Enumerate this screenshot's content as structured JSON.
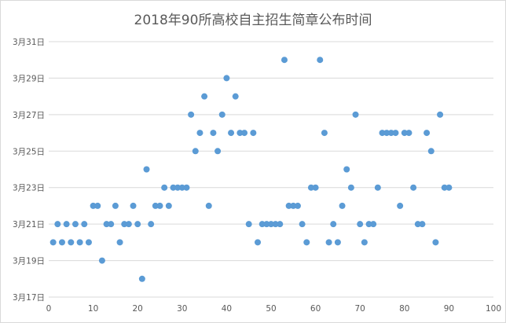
{
  "chart_data": {
    "type": "scatter",
    "title": "2018年90所高校自主招生简章公布时间",
    "xlabel": "",
    "ylabel": "",
    "xlim": [
      0,
      100
    ],
    "x_ticks": [
      0,
      10,
      20,
      30,
      40,
      50,
      60,
      70,
      80,
      90,
      100
    ],
    "ylim": [
      "3月17日",
      "3月31日"
    ],
    "y_ticks": [
      "3月17日",
      "3月19日",
      "3月21日",
      "3月23日",
      "3月25日",
      "3月27日",
      "3月29日",
      "3月31日"
    ],
    "grid": "horizontal",
    "legend": "none",
    "marker_color": "#5b9bd5",
    "series": [
      {
        "points": [
          [
            1,
            "3月20日"
          ],
          [
            2,
            "3月21日"
          ],
          [
            3,
            "3月20日"
          ],
          [
            4,
            "3月21日"
          ],
          [
            5,
            "3月20日"
          ],
          [
            6,
            "3月21日"
          ],
          [
            7,
            "3月20日"
          ],
          [
            8,
            "3月21日"
          ],
          [
            9,
            "3月20日"
          ],
          [
            10,
            "3月22日"
          ],
          [
            11,
            "3月22日"
          ],
          [
            12,
            "3月19日"
          ],
          [
            13,
            "3月21日"
          ],
          [
            14,
            "3月21日"
          ],
          [
            15,
            "3月22日"
          ],
          [
            16,
            "3月20日"
          ],
          [
            17,
            "3月21日"
          ],
          [
            18,
            "3月21日"
          ],
          [
            19,
            "3月22日"
          ],
          [
            20,
            "3月21日"
          ],
          [
            21,
            "3月18日"
          ],
          [
            22,
            "3月24日"
          ],
          [
            23,
            "3月21日"
          ],
          [
            24,
            "3月22日"
          ],
          [
            25,
            "3月22日"
          ],
          [
            26,
            "3月23日"
          ],
          [
            27,
            "3月22日"
          ],
          [
            28,
            "3月23日"
          ],
          [
            29,
            "3月23日"
          ],
          [
            30,
            "3月23日"
          ],
          [
            31,
            "3月23日"
          ],
          [
            32,
            "3月27日"
          ],
          [
            33,
            "3月25日"
          ],
          [
            34,
            "3月26日"
          ],
          [
            35,
            "3月28日"
          ],
          [
            36,
            "3月22日"
          ],
          [
            37,
            "3月26日"
          ],
          [
            38,
            "3月25日"
          ],
          [
            39,
            "3月27日"
          ],
          [
            40,
            "3月29日"
          ],
          [
            41,
            "3月26日"
          ],
          [
            42,
            "3月28日"
          ],
          [
            43,
            "3月26日"
          ],
          [
            44,
            "3月26日"
          ],
          [
            45,
            "3月21日"
          ],
          [
            46,
            "3月26日"
          ],
          [
            47,
            "3月20日"
          ],
          [
            48,
            "3月21日"
          ],
          [
            49,
            "3月21日"
          ],
          [
            50,
            "3月21日"
          ],
          [
            51,
            "3月21日"
          ],
          [
            52,
            "3月21日"
          ],
          [
            53,
            "3月30日"
          ],
          [
            54,
            "3月22日"
          ],
          [
            55,
            "3月22日"
          ],
          [
            56,
            "3月22日"
          ],
          [
            57,
            "3月21日"
          ],
          [
            58,
            "3月20日"
          ],
          [
            59,
            "3月23日"
          ],
          [
            60,
            "3月23日"
          ],
          [
            61,
            "3月30日"
          ],
          [
            62,
            "3月26日"
          ],
          [
            63,
            "3月20日"
          ],
          [
            64,
            "3月21日"
          ],
          [
            65,
            "3月20日"
          ],
          [
            66,
            "3月22日"
          ],
          [
            67,
            "3月24日"
          ],
          [
            68,
            "3月23日"
          ],
          [
            69,
            "3月27日"
          ],
          [
            70,
            "3月21日"
          ],
          [
            71,
            "3月20日"
          ],
          [
            72,
            "3月21日"
          ],
          [
            73,
            "3月21日"
          ],
          [
            74,
            "3月23日"
          ],
          [
            75,
            "3月26日"
          ],
          [
            76,
            "3月26日"
          ],
          [
            77,
            "3月26日"
          ],
          [
            78,
            "3月26日"
          ],
          [
            79,
            "3月22日"
          ],
          [
            80,
            "3月26日"
          ],
          [
            81,
            "3月26日"
          ],
          [
            82,
            "3月23日"
          ],
          [
            83,
            "3月21日"
          ],
          [
            84,
            "3月21日"
          ],
          [
            85,
            "3月26日"
          ],
          [
            86,
            "3月25日"
          ],
          [
            87,
            "3月20日"
          ],
          [
            88,
            "3月27日"
          ],
          [
            89,
            "3月23日"
          ],
          [
            90,
            "3月23日"
          ]
        ]
      }
    ]
  }
}
